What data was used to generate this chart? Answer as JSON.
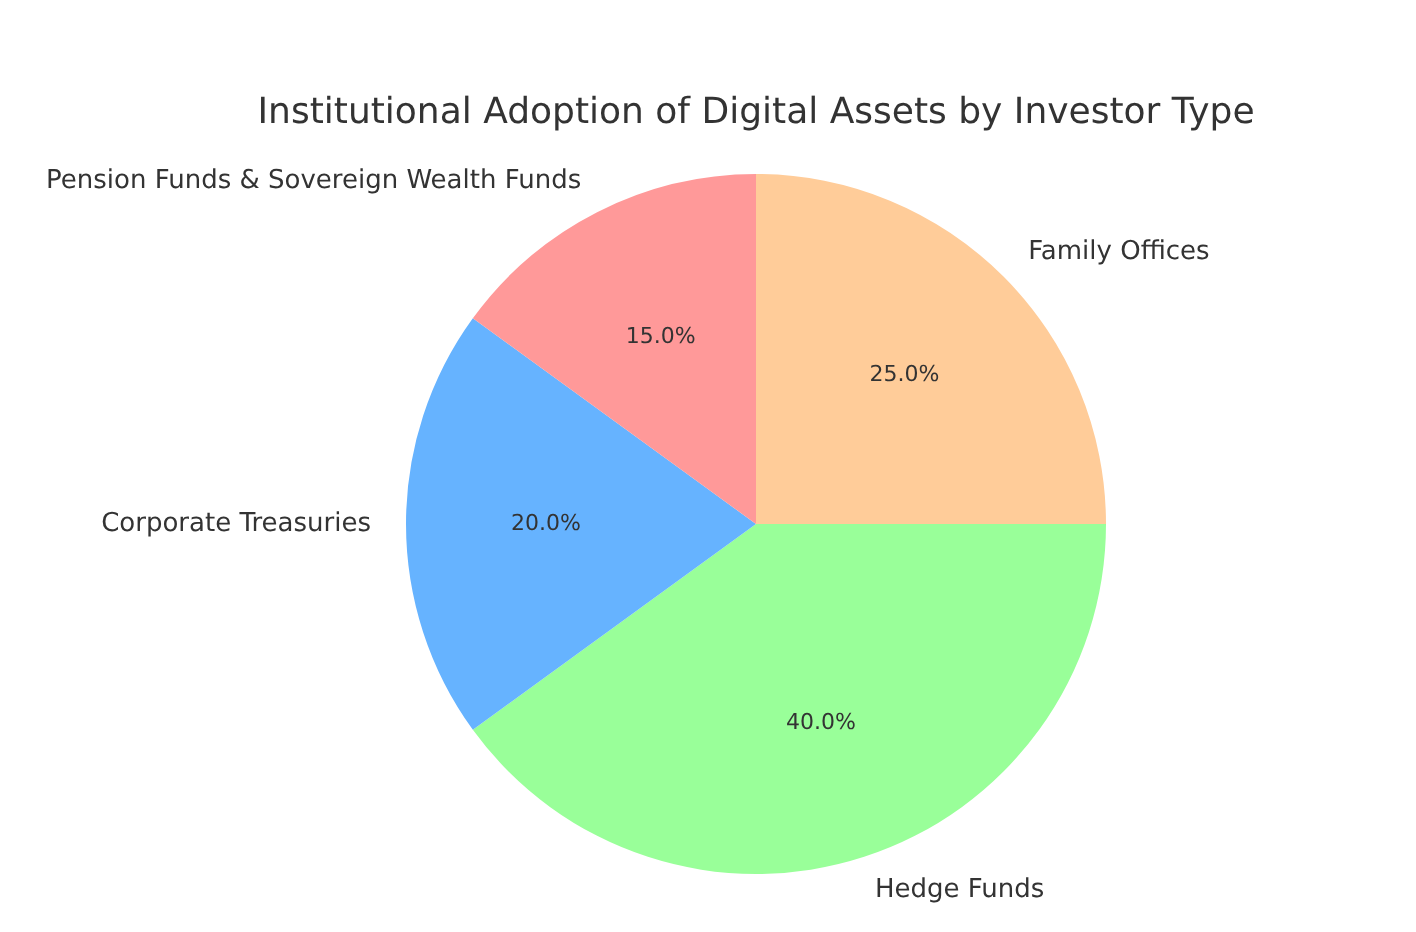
{
  "chart_data": {
    "type": "pie",
    "title": "Institutional Adoption of Digital Assets by Investor Type",
    "categories": [
      "Family Offices",
      "Hedge Funds",
      "Corporate Treasuries",
      "Pension Funds & Sovereign Wealth Funds"
    ],
    "values": [
      25,
      40,
      20,
      15
    ],
    "colors": [
      "#ffcc99",
      "#99ff99",
      "#66b3ff",
      "#ff9999"
    ],
    "value_labels": [
      "25.0%",
      "40.0%",
      "20.0%",
      "15.0%"
    ],
    "legend": false
  }
}
